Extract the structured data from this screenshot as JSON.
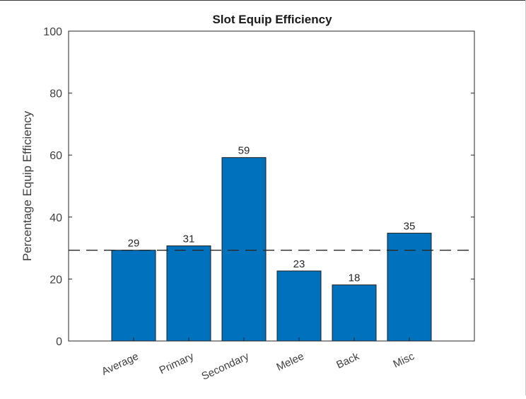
{
  "chart_data": {
    "type": "bar",
    "title": "Slot Equip Efficiency",
    "xlabel": "",
    "ylabel": "Percentage Equip Efficiency",
    "categories": [
      "Average",
      "Primary",
      "Secondary",
      "Melee",
      "Back",
      "Misc"
    ],
    "values": [
      29.3,
      30.7,
      59.2,
      22.6,
      18.1,
      34.8
    ],
    "data_labels": [
      "29",
      "31",
      "59",
      "23",
      "18",
      "35"
    ],
    "ylim": [
      0,
      100
    ],
    "yticks": [
      "0",
      "20",
      "40",
      "60",
      "80",
      "100"
    ],
    "reference_line": {
      "style": "dashed",
      "value": 29.3
    },
    "bar_color": "#0072BD",
    "grid": false,
    "legend": "none"
  }
}
